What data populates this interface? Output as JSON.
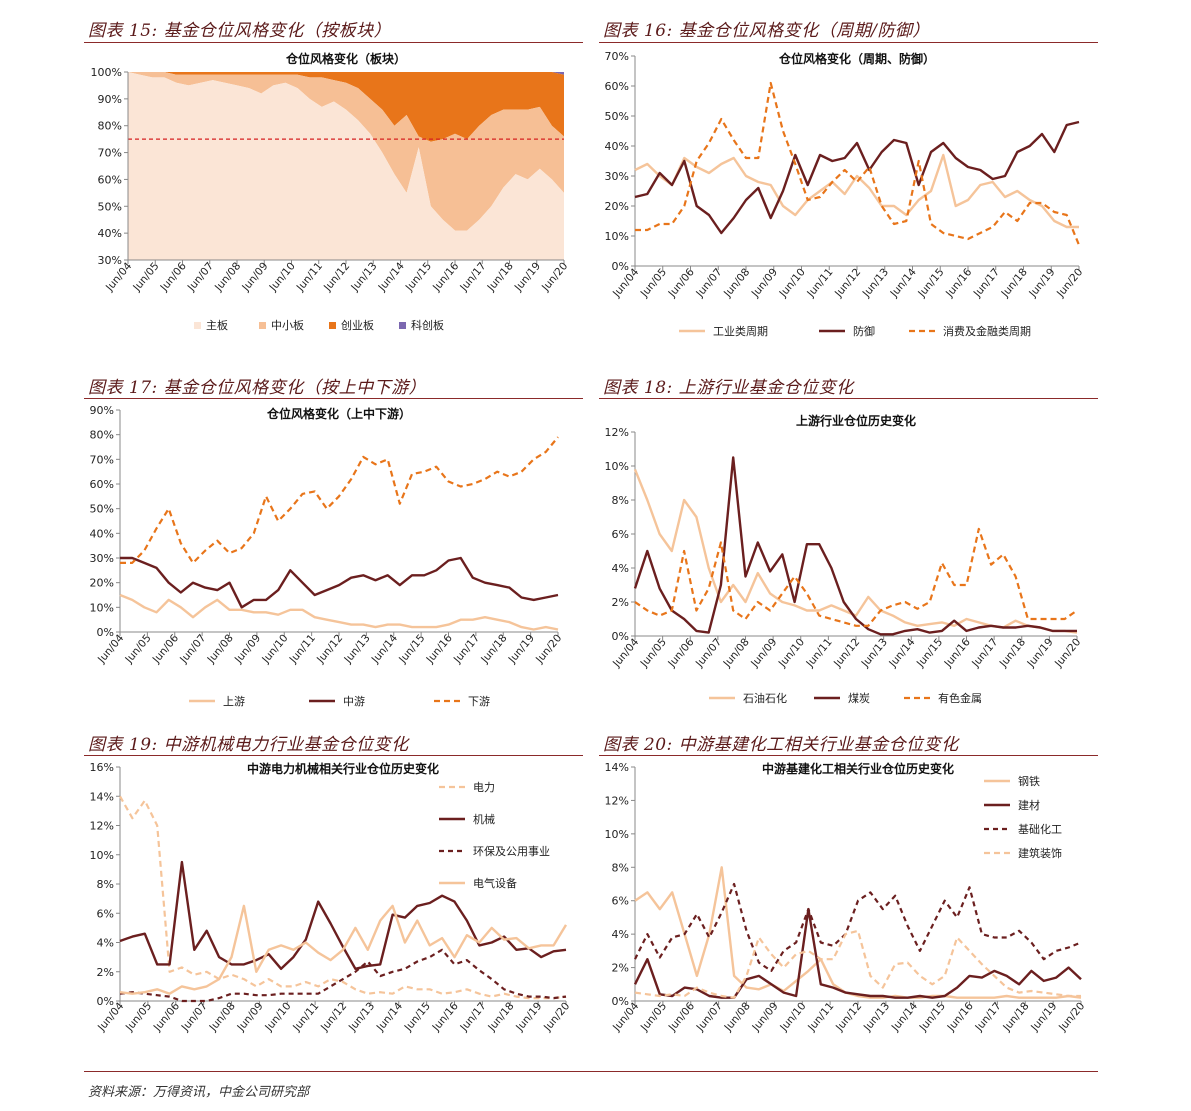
{
  "source": "资料来源：万得资讯，中金公司研究部",
  "x_ticks": [
    "Jun/04",
    "Jun/05",
    "Jun/06",
    "Jun/07",
    "Jun/08",
    "Jun/09",
    "Jun/10",
    "Jun/11",
    "Jun/12",
    "Jun/13",
    "Jun/14",
    "Jun/15",
    "Jun/16",
    "Jun/17",
    "Jun/18",
    "Jun/19",
    "Jun/20"
  ],
  "colors": {
    "light": "#f5c49a",
    "dark": "#6b1f1f",
    "orange": "#e8751a",
    "purple": "#7b68b0",
    "pale": "#fbe5d6",
    "mid": "#f6bf95"
  },
  "chart_data": [
    {
      "id": "c15",
      "type": "area",
      "panel_title": "图表 15: 基金仓位风格变化（按板块）",
      "title": "仓位风格变化（板块）",
      "ylim": [
        30,
        100
      ],
      "yticks": [
        "30%",
        "40%",
        "50%",
        "60%",
        "70%",
        "80%",
        "90%",
        "100%"
      ],
      "reference_line": 75,
      "series": [
        {
          "name": "主板",
          "values": [
            100,
            99,
            98,
            98,
            96,
            95,
            96,
            97,
            96,
            95,
            94,
            92,
            95,
            96,
            94,
            90,
            87,
            89,
            86,
            82,
            77,
            70,
            62,
            55,
            72,
            50,
            45,
            41,
            41,
            45,
            50,
            57,
            62,
            60,
            64,
            60,
            55
          ]
        },
        {
          "name": "中小板",
          "values": [
            100,
            100,
            100,
            100,
            99,
            99,
            99,
            99,
            99,
            99,
            99,
            99,
            99,
            99,
            99,
            98,
            98,
            97,
            96,
            94,
            90,
            86,
            80,
            84,
            76,
            74,
            75,
            77,
            75,
            80,
            84,
            86,
            86,
            86,
            87,
            80,
            76
          ]
        },
        {
          "name": "创业板",
          "values": [
            100,
            100,
            100,
            100,
            100,
            100,
            100,
            100,
            100,
            100,
            100,
            100,
            100,
            100,
            100,
            100,
            100,
            100,
            100,
            100,
            100,
            100,
            100,
            100,
            100,
            100,
            100,
            100,
            100,
            100,
            100,
            100,
            100,
            100,
            100,
            100,
            99
          ]
        },
        {
          "name": "科创板",
          "values": [
            100,
            100,
            100,
            100,
            100,
            100,
            100,
            100,
            100,
            100,
            100,
            100,
            100,
            100,
            100,
            100,
            100,
            100,
            100,
            100,
            100,
            100,
            100,
            100,
            100,
            100,
            100,
            100,
            100,
            100,
            100,
            100,
            100,
            100,
            100,
            100,
            100
          ]
        }
      ]
    },
    {
      "id": "c16",
      "type": "line",
      "panel_title": "图表 16: 基金仓位风格变化（周期/防御）",
      "title": "仓位风格变化（周期、防御）",
      "ylim": [
        0,
        70
      ],
      "yticks": [
        "0%",
        "10%",
        "20%",
        "30%",
        "40%",
        "50%",
        "60%",
        "70%"
      ],
      "series": [
        {
          "name": "工业类周期",
          "style": "solid-light",
          "values": [
            32,
            34,
            30,
            27,
            36,
            33,
            31,
            34,
            36,
            30,
            28,
            27,
            20,
            17,
            22,
            25,
            28,
            24,
            30,
            26,
            20,
            20,
            17,
            22,
            25,
            37,
            20,
            22,
            27,
            28,
            23,
            25,
            22,
            20,
            15,
            13,
            13
          ]
        },
        {
          "name": "防御",
          "style": "solid-dark",
          "values": [
            23,
            24,
            31,
            27,
            35,
            20,
            17,
            11,
            16,
            22,
            26,
            16,
            25,
            37,
            27,
            37,
            35,
            36,
            41,
            32,
            38,
            42,
            41,
            27,
            38,
            41,
            36,
            33,
            32,
            29,
            30,
            38,
            40,
            44,
            38,
            47,
            48
          ]
        },
        {
          "name": "消费及金融类周期",
          "style": "dashed-orange",
          "values": [
            12,
            12,
            14,
            14,
            20,
            35,
            41,
            49,
            42,
            36,
            36,
            61,
            45,
            34,
            22,
            23,
            28,
            32,
            28,
            33,
            20,
            14,
            15,
            35,
            14,
            11,
            10,
            9,
            11,
            13,
            18,
            15,
            21,
            21,
            18,
            17,
            7
          ]
        }
      ]
    },
    {
      "id": "c17",
      "type": "line",
      "panel_title": "图表 17: 基金仓位风格变化（按上中下游）",
      "title": "仓位风格变化（上中下游）",
      "ylim": [
        0,
        90
      ],
      "yticks": [
        "0%",
        "10%",
        "20%",
        "30%",
        "40%",
        "50%",
        "60%",
        "70%",
        "80%",
        "90%"
      ],
      "series": [
        {
          "name": "上游",
          "style": "solid-light",
          "values": [
            15,
            13,
            10,
            8,
            13,
            10,
            6,
            10,
            13,
            9,
            9,
            8,
            8,
            7,
            9,
            9,
            6,
            5,
            4,
            3,
            3,
            2,
            3,
            3,
            2,
            2,
            2,
            3,
            5,
            5,
            6,
            5,
            4,
            2,
            1,
            2,
            1
          ]
        },
        {
          "name": "中游",
          "style": "solid-dark",
          "values": [
            30,
            30,
            28,
            26,
            20,
            16,
            20,
            18,
            17,
            20,
            10,
            13,
            13,
            17,
            25,
            20,
            15,
            17,
            19,
            22,
            23,
            21,
            23,
            19,
            23,
            23,
            25,
            29,
            30,
            22,
            20,
            19,
            18,
            14,
            13,
            14,
            15
          ]
        },
        {
          "name": "下游",
          "style": "dashed-orange",
          "values": [
            28,
            28,
            33,
            42,
            50,
            36,
            28,
            33,
            37,
            32,
            34,
            40,
            55,
            45,
            50,
            56,
            57,
            50,
            55,
            62,
            71,
            68,
            70,
            52,
            64,
            65,
            67,
            61,
            59,
            60,
            62,
            65,
            63,
            65,
            70,
            73,
            79
          ]
        }
      ]
    },
    {
      "id": "c18",
      "type": "line",
      "panel_title": "图表 18: 上游行业基金仓位变化",
      "title": "上游行业仓位历史变化",
      "ylim": [
        0,
        12
      ],
      "yticks": [
        "0%",
        "2%",
        "4%",
        "6%",
        "8%",
        "10%",
        "12%"
      ],
      "series": [
        {
          "name": "石油石化",
          "style": "solid-light",
          "values": [
            9.8,
            8,
            6,
            5,
            8,
            7,
            4,
            2,
            3,
            2,
            3.7,
            2.5,
            2,
            1.8,
            1.5,
            1.5,
            1.8,
            1.5,
            1.2,
            2.3,
            1.5,
            1.2,
            0.8,
            0.6,
            0.7,
            0.8,
            0.6,
            1,
            0.8,
            0.6,
            0.5,
            0.9,
            0.6,
            0.5,
            0.3,
            0.3,
            0.2
          ]
        },
        {
          "name": "煤炭",
          "style": "solid-dark",
          "values": [
            2.8,
            5,
            2.8,
            1.5,
            1,
            0.3,
            0.2,
            3,
            10.5,
            3.5,
            5.5,
            3.8,
            4.8,
            2,
            5.4,
            5.4,
            4,
            2,
            1,
            0.4,
            0.1,
            0.1,
            0.3,
            0.4,
            0.2,
            0.3,
            0.9,
            0.3,
            0.5,
            0.6,
            0.5,
            0.5,
            0.6,
            0.5,
            0.3,
            0.3,
            0.3
          ]
        },
        {
          "name": "有色金属",
          "style": "dashed-orange",
          "values": [
            2,
            1.5,
            1.2,
            1.5,
            5,
            1.5,
            2.8,
            5.5,
            1.5,
            1,
            2,
            1.5,
            2.5,
            3.5,
            2.5,
            1.2,
            1,
            0.8,
            0.6,
            0.6,
            1.5,
            1.8,
            2,
            1.6,
            2,
            4.3,
            3,
            3,
            6.3,
            4.2,
            4.8,
            3.5,
            1,
            1,
            1,
            1,
            1.5
          ]
        }
      ]
    },
    {
      "id": "c19",
      "type": "line",
      "panel_title": "图表 19: 中游机械电力行业基金仓位变化",
      "title": "中游电力机械相关行业仓位历史变化",
      "ylim": [
        0,
        16
      ],
      "yticks": [
        "0%",
        "2%",
        "4%",
        "6%",
        "8%",
        "10%",
        "12%",
        "14%",
        "16%"
      ],
      "series": [
        {
          "name": "电力",
          "style": "dashed-light",
          "values": [
            14,
            12.5,
            13.7,
            12,
            2,
            2.3,
            1.8,
            2,
            1.5,
            1.8,
            1.5,
            1,
            1.5,
            1,
            1,
            1.3,
            1,
            1.5,
            1.3,
            0.8,
            0.5,
            0.6,
            0.5,
            1,
            0.8,
            0.8,
            0.5,
            0.6,
            0.8,
            0.5,
            0.3,
            0.5,
            0.3,
            0.2,
            0.2,
            0.2,
            0.3
          ]
        },
        {
          "name": "机械",
          "style": "solid-dark",
          "values": [
            4.1,
            4.4,
            4.6,
            2.5,
            2.5,
            9.5,
            3.5,
            4.8,
            3,
            2.5,
            2.5,
            2.8,
            3.2,
            2.2,
            3,
            4.2,
            6.8,
            5.3,
            3.7,
            2.2,
            2.4,
            2.5,
            5.9,
            5.7,
            6.5,
            6.7,
            7.2,
            6.8,
            5.5,
            3.8,
            4,
            4.4,
            3.5,
            3.6,
            3,
            3.4,
            3.5
          ]
        },
        {
          "name": "环保及公用事业",
          "style": "dashed-dark",
          "values": [
            0.5,
            0.6,
            0.5,
            0.4,
            0.3,
            0,
            0,
            0,
            0.2,
            0.5,
            0.5,
            0.4,
            0.4,
            0.5,
            0.5,
            0.5,
            0.5,
            1,
            1.5,
            2,
            2.7,
            1.7,
            2,
            2.2,
            2.7,
            3,
            3.5,
            2.5,
            2.8,
            2.1,
            1.5,
            0.8,
            0.5,
            0.3,
            0.3,
            0.2,
            0.3
          ]
        },
        {
          "name": "电气设备",
          "style": "solid-light",
          "values": [
            0.6,
            0.5,
            0.6,
            0.8,
            0.5,
            1,
            0.8,
            1,
            1.5,
            3,
            6.5,
            2,
            3.5,
            3.8,
            3.5,
            4,
            3.3,
            2.8,
            3.5,
            5,
            3.5,
            5.5,
            6.5,
            4,
            5.5,
            3.8,
            4.3,
            3,
            4.5,
            4,
            5,
            4.2,
            4.3,
            3.6,
            3.8,
            3.8,
            5.2
          ]
        }
      ]
    },
    {
      "id": "c20",
      "type": "line",
      "panel_title": "图表 20: 中游基建化工相关行业基金仓位变化",
      "title": "中游基建化工相关行业仓位历史变化",
      "ylim": [
        0,
        14
      ],
      "yticks": [
        "0%",
        "2%",
        "4%",
        "6%",
        "8%",
        "10%",
        "12%",
        "14%"
      ],
      "series": [
        {
          "name": "钢铁",
          "style": "solid-light",
          "values": [
            6,
            6.5,
            5.5,
            6.5,
            4,
            1.5,
            4,
            8,
            1.5,
            0.8,
            0.7,
            1,
            0.6,
            1.2,
            1.8,
            2.5,
            1,
            0.5,
            0.3,
            0.2,
            0.2,
            0.3,
            0.2,
            0.2,
            0.3,
            0.3,
            0.2,
            0.2,
            0.2,
            0.2,
            0.3,
            0.2,
            0.2,
            0.2,
            0.2,
            0.3,
            0.2
          ]
        },
        {
          "name": "建材",
          "style": "solid-dark",
          "values": [
            1,
            2.5,
            0.4,
            0.3,
            0.8,
            0.7,
            0.3,
            0.2,
            0.2,
            1.3,
            1.5,
            1,
            0.5,
            0.3,
            5.5,
            1,
            0.8,
            0.5,
            0.4,
            0.3,
            0.3,
            0.2,
            0.2,
            0.3,
            0.2,
            0.3,
            0.8,
            1.5,
            1.4,
            1.8,
            1.5,
            1,
            1.8,
            1.2,
            1.4,
            2,
            1.3
          ]
        },
        {
          "name": "基础化工",
          "style": "dashed-dark",
          "values": [
            2.5,
            4,
            2.6,
            3.8,
            4,
            5.2,
            3.8,
            5.3,
            7,
            4.2,
            2.3,
            1.8,
            3,
            3.5,
            5.5,
            3.5,
            3.3,
            4,
            6,
            6.5,
            5.5,
            6.3,
            4.5,
            3,
            4.5,
            6,
            5,
            6.8,
            4,
            3.8,
            3.8,
            4.2,
            3.5,
            2.5,
            3,
            3.2,
            3.5
          ]
        },
        {
          "name": "建筑装饰",
          "style": "dashed-light",
          "values": [
            0.5,
            0.4,
            0.3,
            0.4,
            0.3,
            0.8,
            0.5,
            0.3,
            0.2,
            1.5,
            3.8,
            2.8,
            2,
            2.8,
            3,
            2.5,
            2.5,
            4,
            4.2,
            1.5,
            0.8,
            2.2,
            2.3,
            1.5,
            1,
            1.5,
            3.8,
            3,
            2.2,
            1.5,
            0.8,
            0.5,
            0.6,
            0.5,
            0.4,
            0.3,
            0.3
          ]
        }
      ]
    }
  ]
}
